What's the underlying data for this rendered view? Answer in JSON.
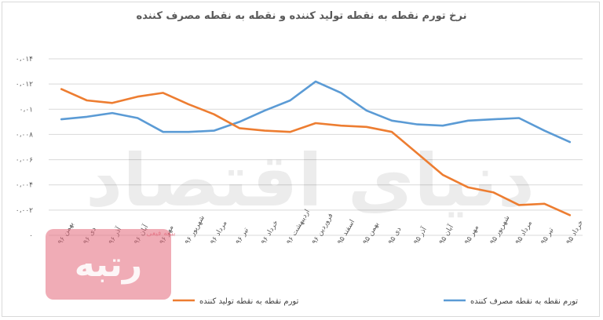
{
  "chart_data": {
    "type": "line",
    "title": "نرخ تورم نقطه به نقطه تولید کننده و نقطه به نقطه مصرف کننده",
    "categories": [
      "خرداد ۹۵",
      "تیر ۹۵",
      "مرداد ۹۵",
      "شهریور ۹۵",
      "مهر ۹۵",
      "آبان ۹۵",
      "آذر ۹۵",
      "دی ۹۵",
      "بهمن ۹۵",
      "اسفند ۹۵",
      "فروردین ۹۶",
      "اردیبهشت ۹۶",
      "خرداد ۹۶",
      "تیر ۹۶",
      "مرداد ۹۶",
      "شهریور ۹۶",
      "مهر ۹۶",
      "آبان ۹۶",
      "آذر ۹۶",
      "دی ۹۶",
      "بهمن ۹۶"
    ],
    "y_tick_labels": [
      "۰",
      "۰،۰۰۲",
      "۰،۰۰۴",
      "۰،۰۰۶",
      "۰،۰۰۸",
      "۰،۰۱",
      "۰،۰۱۲",
      "۰،۰۱۴"
    ],
    "ylim": [
      0,
      0.014
    ],
    "grid": true,
    "legend_position": "bottom",
    "series": [
      {
        "name": "تورم نقطه به نقطه مصرف کننده",
        "color": "#5b9bd5",
        "values": [
          0.0074,
          0.0083,
          0.0093,
          0.0092,
          0.0091,
          0.0087,
          0.0088,
          0.0091,
          0.0099,
          0.0113,
          0.0122,
          0.0107,
          0.0099,
          0.009,
          0.0083,
          0.0082,
          0.0082,
          0.0093,
          0.0097,
          0.0094,
          0.0092
        ]
      },
      {
        "name": "تورم نقطه به نقطه تولید کننده",
        "color": "#ed7d31",
        "values": [
          0.0016,
          0.0025,
          0.0024,
          0.0034,
          0.0038,
          0.0048,
          0.0065,
          0.0082,
          0.0086,
          0.0087,
          0.0089,
          0.0082,
          0.0083,
          0.0085,
          0.0096,
          0.0104,
          0.0113,
          0.011,
          0.0105,
          0.0107,
          0.0116
        ]
      }
    ]
  },
  "watermark": {
    "text": "دنیای اقتصاد",
    "logo_text": "رتبه",
    "logo_caption": "بیمه فیعی"
  }
}
